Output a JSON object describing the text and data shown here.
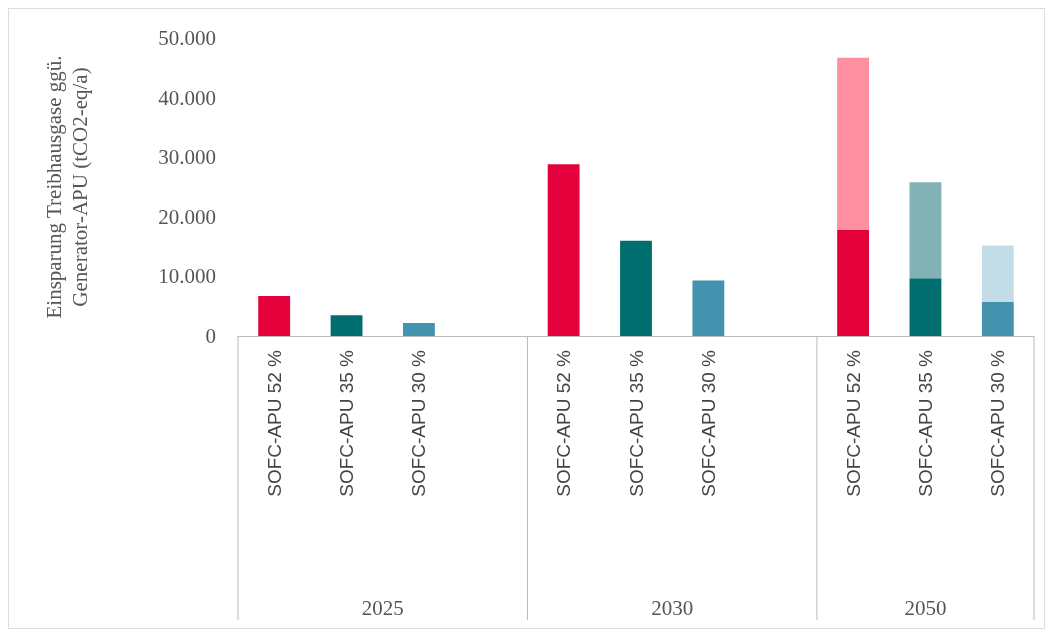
{
  "chart_data": {
    "type": "bar",
    "stacked": true,
    "ylabel": "Einsparung Treibhausgase ggü.\nGenerator-APU (tCO2-eq/a)",
    "categories": [
      "SOFC-APU 52 %",
      "SOFC-APU 35 %",
      "SOFC-APU 30 %",
      null,
      "SOFC-APU 52 %",
      "SOFC-APU 35 %",
      "SOFC-APU 30 %",
      null,
      "SOFC-APU 52 %",
      "SOFC-APU 35 %",
      "SOFC-APU 30 %"
    ],
    "series": [
      {
        "colors": [
          "#e4003a",
          "#006e6e",
          "#4393ae",
          null,
          "#e4003a",
          "#006e6e",
          "#4393ae",
          null,
          "#e4003a",
          "#006e6e",
          "#4393ae"
        ],
        "values": [
          6700,
          3500,
          2200,
          null,
          28800,
          16000,
          9300,
          null,
          17800,
          9700,
          5700
        ]
      },
      {
        "colors": [
          null,
          null,
          null,
          null,
          null,
          null,
          null,
          null,
          "#ff8fa3",
          "#82b1b6",
          "#c2dde6"
        ],
        "values": [
          null,
          null,
          null,
          null,
          null,
          null,
          null,
          null,
          28900,
          16100,
          9500
        ]
      }
    ],
    "ylim": [
      0,
      50000
    ],
    "yticks": [
      0,
      {
        "value": 10000,
        "label": "10.000"
      },
      {
        "value": 20000,
        "label": "20.000"
      },
      {
        "value": 30000,
        "label": "30.000"
      },
      {
        "value": 40000,
        "label": "40.000"
      },
      {
        "value": 50000,
        "label": "50.000"
      }
    ],
    "grid": false,
    "annotations": [
      "2025",
      "2030",
      "2050"
    ]
  }
}
